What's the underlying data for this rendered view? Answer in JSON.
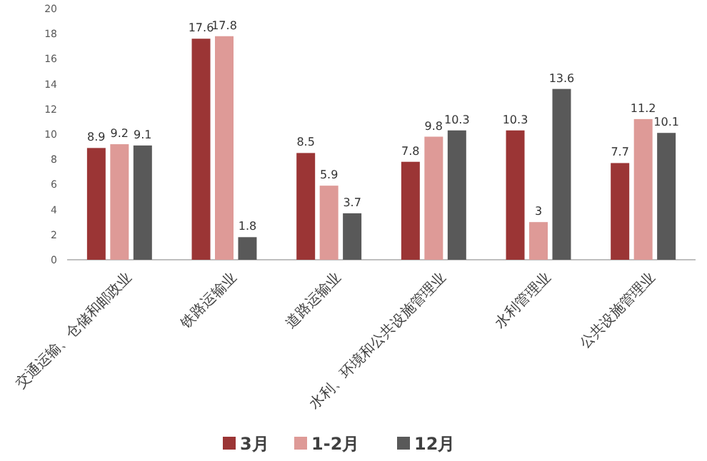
{
  "chart_data": {
    "type": "bar",
    "categories": [
      "交通运输、仓储和邮政业",
      "铁路运输业",
      "道路运输业",
      "水利、环境和公共设施管理业",
      "水利管理业",
      "公共设施管理业"
    ],
    "series": [
      {
        "name": "3月",
        "color": "#9b3535",
        "values": [
          8.9,
          17.6,
          8.5,
          7.8,
          10.3,
          7.7
        ]
      },
      {
        "name": "1-2月",
        "color": "#de9a97",
        "values": [
          9.2,
          17.8,
          5.9,
          9.8,
          3,
          11.2
        ]
      },
      {
        "name": "12月",
        "color": "#595959",
        "values": [
          9.1,
          1.8,
          3.7,
          10.3,
          13.6,
          10.1
        ]
      }
    ],
    "ylim": [
      0,
      20
    ],
    "yticks": [
      0,
      2,
      4,
      6,
      8,
      10,
      12,
      14,
      16,
      18,
      20
    ],
    "grid": false,
    "legend": "bottom",
    "data_labels": true
  }
}
